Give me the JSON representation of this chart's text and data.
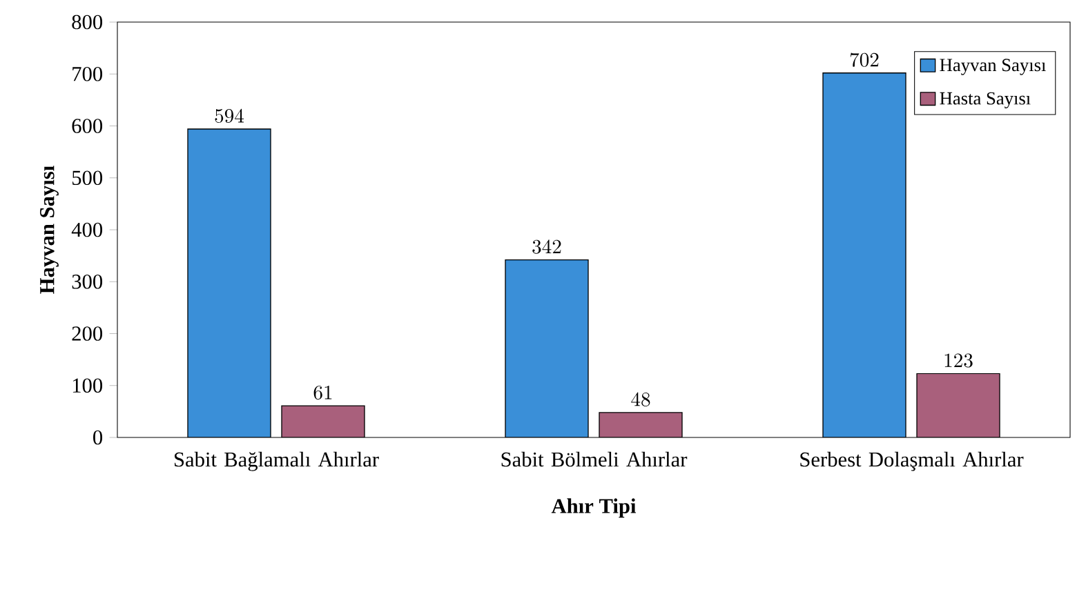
{
  "chart_data": {
    "type": "bar",
    "xlabel": "Ahır Tipi",
    "ylabel": "Hayvan Sayısı",
    "categories": [
      "Sabit Bağlamalı Ahırlar",
      "Sabit Bölmeli Ahırlar",
      "Serbest Dolaşmalı Ahırlar"
    ],
    "series": [
      {
        "name": "Hayvan Sayısı",
        "color": "#3a8fd8",
        "values": [
          594,
          342,
          702
        ]
      },
      {
        "name": "Hasta Sayısı",
        "color": "#a9607c",
        "values": [
          61,
          48,
          123
        ]
      }
    ],
    "ylim": [
      0,
      800
    ],
    "yticks": [
      0,
      100,
      200,
      300,
      400,
      500,
      600,
      700,
      800
    ],
    "data_labels": true,
    "legend": "top right",
    "grid": false
  }
}
